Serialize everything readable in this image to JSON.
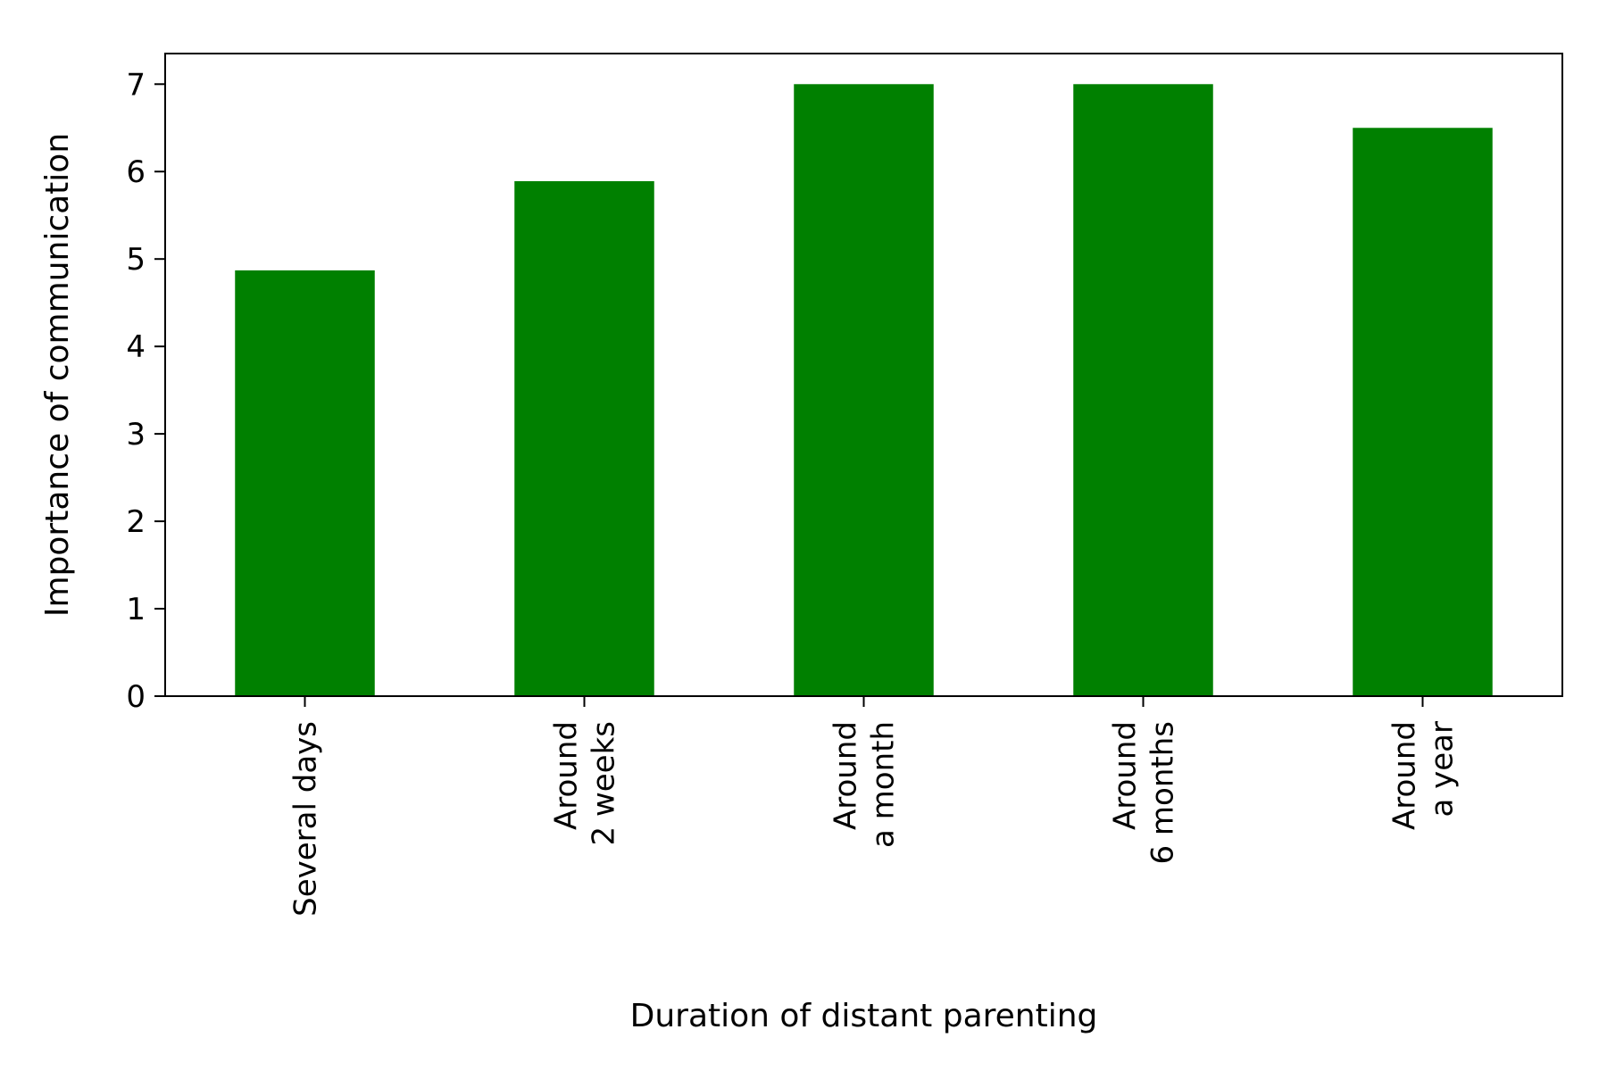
{
  "chart_data": {
    "type": "bar",
    "categories": [
      [
        "Several days"
      ],
      [
        "Around",
        "2 weeks"
      ],
      [
        "Around",
        "a month"
      ],
      [
        "Around",
        "6 months"
      ],
      [
        "Around",
        "a year"
      ]
    ],
    "values": [
      4.87,
      5.89,
      7.0,
      7.0,
      6.5
    ],
    "xlabel": "Duration of distant parenting",
    "ylabel": "Importance of communication",
    "ylim": [
      0,
      7.35
    ],
    "yticks": [
      0,
      1,
      2,
      3,
      4,
      5,
      6,
      7
    ],
    "bar_color": "#008000",
    "grid": false,
    "legend": "none"
  }
}
